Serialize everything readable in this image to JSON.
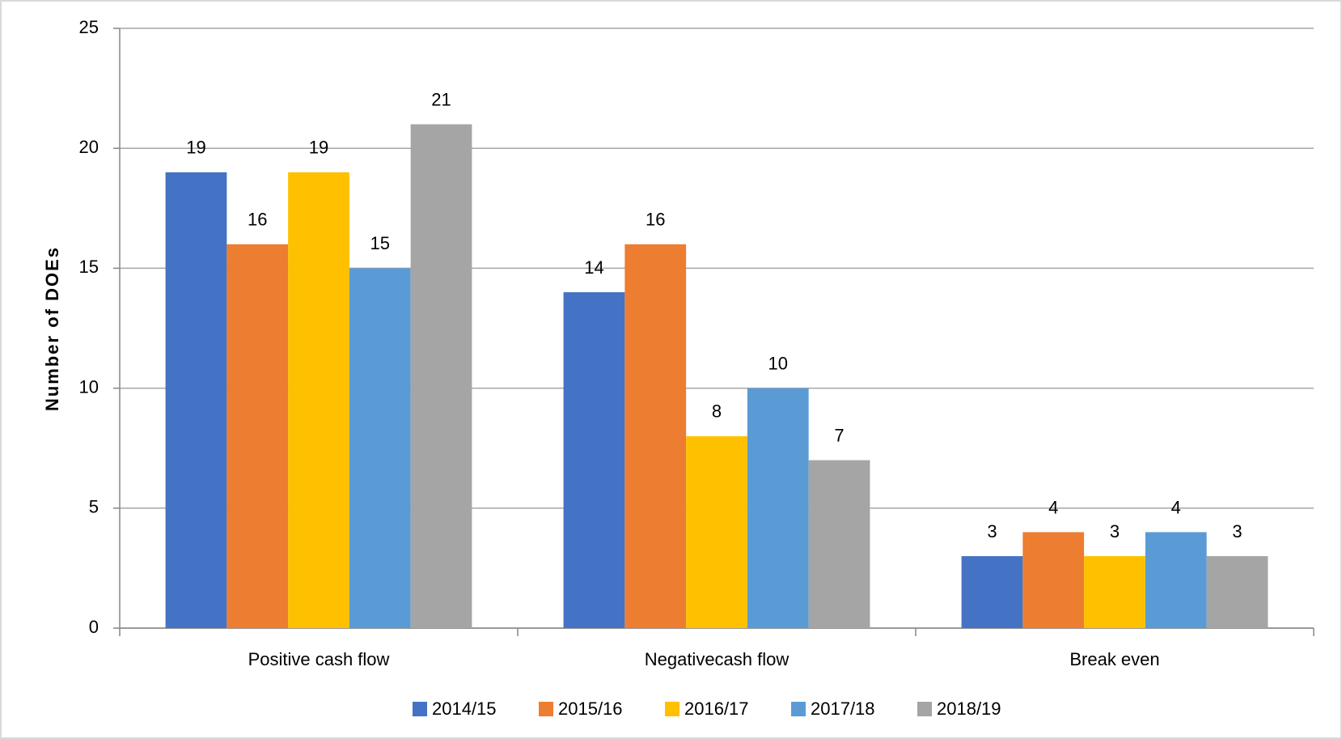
{
  "chart_data": {
    "type": "bar",
    "y_label": "Number of DOEs",
    "categories": [
      "Positive cash flow",
      "Negativecash flow",
      "Break even"
    ],
    "series": [
      {
        "name": "2014/15",
        "color": "#4472c4",
        "values": [
          19,
          14,
          3
        ]
      },
      {
        "name": "2015/16",
        "color": "#ed7d31",
        "values": [
          16,
          16,
          4
        ]
      },
      {
        "name": "2016/17",
        "color": "#ffc000",
        "values": [
          19,
          8,
          3
        ]
      },
      {
        "name": "2017/18",
        "color": "#5b9bd5",
        "values": [
          15,
          10,
          4
        ]
      },
      {
        "name": "2018/19",
        "color": "#a5a5a5",
        "values": [
          21,
          7,
          3
        ]
      }
    ],
    "ylim": [
      0,
      25
    ],
    "yticks": [
      0,
      5,
      10,
      15,
      20,
      25
    ],
    "grid": true,
    "legend": "bottom"
  }
}
